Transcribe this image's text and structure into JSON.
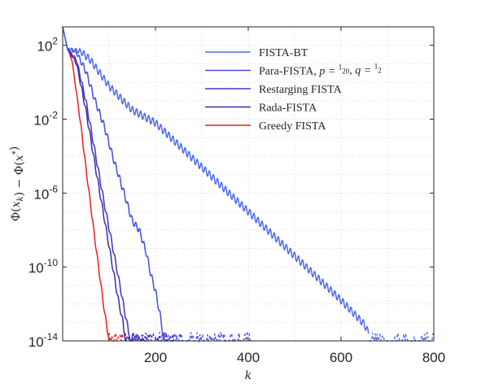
{
  "chart_data": {
    "type": "line",
    "xlabel": "k",
    "ylabel": "Φ(x_k) − Φ(x*)",
    "xlim": [
      0,
      800
    ],
    "ylim_log10": [
      -14,
      3
    ],
    "yscale": "log",
    "grid": true,
    "legend_position": "top-right",
    "x_ticks": [
      {
        "value": 200,
        "label": "200"
      },
      {
        "value": 400,
        "label": "400"
      },
      {
        "value": 600,
        "label": "600"
      },
      {
        "value": 800,
        "label": "800"
      }
    ],
    "y_ticks": [
      {
        "exp": 2,
        "base": "10",
        "sup": "2"
      },
      {
        "exp": -2,
        "base": "10",
        "sup": "-2"
      },
      {
        "exp": -6,
        "base": "10",
        "sup": "-6"
      },
      {
        "exp": -10,
        "base": "10",
        "sup": "-10"
      },
      {
        "exp": -14,
        "base": "10",
        "sup": "-14"
      }
    ],
    "series": [
      {
        "name": "FISTA-BT",
        "legend_main": "FISTA-BT",
        "color": "#4d6bf0",
        "points": [
          [
            0,
            3.0
          ],
          [
            10,
            1.85
          ],
          [
            40,
            1.65
          ],
          [
            60,
            1.2
          ],
          [
            80,
            0.5
          ],
          [
            100,
            -0.2
          ],
          [
            130,
            -1.0
          ],
          [
            150,
            -1.5
          ],
          [
            200,
            -2.2
          ],
          [
            250,
            -3.4
          ],
          [
            300,
            -4.6
          ],
          [
            400,
            -7.0
          ],
          [
            500,
            -9.4
          ],
          [
            600,
            -11.8
          ],
          [
            650,
            -13.1
          ],
          [
            660,
            -13.6
          ],
          [
            670,
            -14.0
          ],
          [
            800,
            -14.0
          ]
        ],
        "ripple_amplitude": 0.2,
        "floor_x_range": [
          660,
          800
        ]
      },
      {
        "name": "Para-FISTA, p = 1/20, q = 1/2",
        "legend_main": "Para-FISTA, ",
        "legend_math": [
          "p = ",
          "1",
          "20",
          ", q = ",
          "1",
          "2"
        ],
        "color": "#3f4fe6",
        "points": [
          [
            0,
            3.0
          ],
          [
            10,
            1.85
          ],
          [
            30,
            1.6
          ],
          [
            50,
            0.6
          ],
          [
            70,
            -1.0
          ],
          [
            90,
            -2.4
          ],
          [
            110,
            -4.2
          ],
          [
            130,
            -5.8
          ],
          [
            150,
            -7.5
          ],
          [
            165,
            -8.0
          ],
          [
            180,
            -9.2
          ],
          [
            190,
            -10.4
          ],
          [
            200,
            -11.3
          ],
          [
            210,
            -12.6
          ],
          [
            215,
            -13.4
          ],
          [
            220,
            -14.0
          ],
          [
            410,
            -14.0
          ]
        ],
        "ripple_amplitude": 0.18,
        "floor_x_range": [
          220,
          410
        ]
      },
      {
        "name": "Restarging FISTA",
        "legend_main": "Restarging FISTA",
        "color": "#3c33c8",
        "points": [
          [
            0,
            3.0
          ],
          [
            10,
            1.85
          ],
          [
            30,
            1.2
          ],
          [
            50,
            -1.0
          ],
          [
            70,
            -3.8
          ],
          [
            90,
            -6.6
          ],
          [
            110,
            -9.2
          ],
          [
            125,
            -11.2
          ],
          [
            135,
            -12.6
          ],
          [
            140,
            -13.2
          ],
          [
            145,
            -14.0
          ],
          [
            245,
            -14.0
          ]
        ],
        "ripple_amplitude": 0.15,
        "floor_x_range": [
          145,
          245
        ]
      },
      {
        "name": "Rada-FISTA",
        "legend_main": "Rada-FISTA",
        "color": "#3a2bb0",
        "points": [
          [
            0,
            3.0
          ],
          [
            10,
            1.85
          ],
          [
            30,
            1.0
          ],
          [
            50,
            -1.5
          ],
          [
            70,
            -4.5
          ],
          [
            90,
            -7.4
          ],
          [
            105,
            -9.6
          ],
          [
            120,
            -11.8
          ],
          [
            130,
            -13.0
          ],
          [
            135,
            -14.0
          ],
          [
            185,
            -14.0
          ]
        ],
        "ripple_amplitude": 0.15,
        "floor_x_range": [
          135,
          185
        ]
      },
      {
        "name": "Greedy FISTA",
        "legend_main": "Greedy FISTA",
        "color": "#ee1c1c",
        "points": [
          [
            0,
            3.0
          ],
          [
            10,
            1.85
          ],
          [
            20,
            1.2
          ],
          [
            30,
            -0.6
          ],
          [
            40,
            -2.5
          ],
          [
            50,
            -4.6
          ],
          [
            60,
            -6.6
          ],
          [
            70,
            -8.6
          ],
          [
            80,
            -10.5
          ],
          [
            90,
            -12.4
          ],
          [
            95,
            -13.2
          ],
          [
            100,
            -14.0
          ],
          [
            130,
            -14.0
          ]
        ],
        "ripple_amplitude": 0.12,
        "floor_x_range": [
          100,
          130
        ]
      }
    ]
  }
}
